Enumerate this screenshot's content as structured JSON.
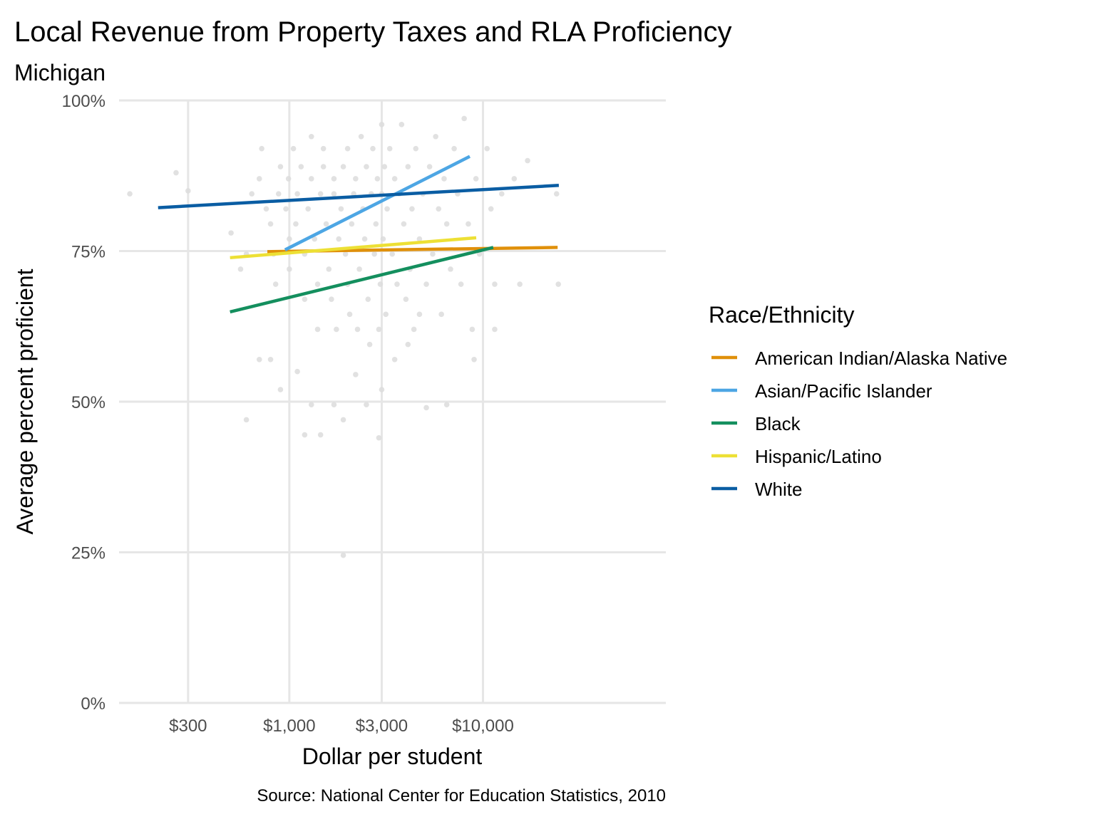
{
  "chart_data": {
    "type": "scatter",
    "title": "Local Revenue from Property Taxes and RLA Proficiency",
    "subtitle": "Michigan",
    "xlabel": "Dollar per student",
    "ylabel": "Average percent proficient",
    "caption": "Source: National Center for Education Statistics, 2010",
    "x_scale": "log10",
    "xlim": [
      132,
      88000
    ],
    "ylim": [
      0,
      100
    ],
    "x_ticks": [
      {
        "value": 300,
        "label": "$300"
      },
      {
        "value": 1000,
        "label": "$1,000"
      },
      {
        "value": 3000,
        "label": "$3,000"
      },
      {
        "value": 10000,
        "label": "$10,000"
      }
    ],
    "y_ticks": [
      {
        "value": 0,
        "label": "0%"
      },
      {
        "value": 25,
        "label": "25%"
      },
      {
        "value": 50,
        "label": "50%"
      },
      {
        "value": 75,
        "label": "75%"
      },
      {
        "value": 100,
        "label": "100%"
      }
    ],
    "grid": true,
    "legend": {
      "title": "Race/Ethnicity",
      "placement": "right"
    },
    "point_color": "#dcdcdc",
    "points": [
      [
        150,
        84.5
      ],
      [
        260,
        88
      ],
      [
        300,
        85
      ],
      [
        500,
        78
      ],
      [
        560,
        72
      ],
      [
        600,
        74.5
      ],
      [
        640,
        84.5
      ],
      [
        700,
        87
      ],
      [
        720,
        92
      ],
      [
        760,
        82
      ],
      [
        800,
        79.5
      ],
      [
        830,
        74.5
      ],
      [
        850,
        69.5
      ],
      [
        880,
        84.5
      ],
      [
        900,
        89
      ],
      [
        960,
        82
      ],
      [
        990,
        87
      ],
      [
        1000,
        77
      ],
      [
        1000,
        72
      ],
      [
        1050,
        92
      ],
      [
        1080,
        79.5
      ],
      [
        1100,
        84.5
      ],
      [
        1150,
        89
      ],
      [
        1200,
        74.5
      ],
      [
        1200,
        67
      ],
      [
        1250,
        82
      ],
      [
        1300,
        87
      ],
      [
        1300,
        94
      ],
      [
        1350,
        77
      ],
      [
        1400,
        69.5
      ],
      [
        1400,
        62
      ],
      [
        1450,
        84.5
      ],
      [
        1500,
        89
      ],
      [
        1500,
        92
      ],
      [
        1550,
        79.5
      ],
      [
        1600,
        72
      ],
      [
        1650,
        67
      ],
      [
        1700,
        84.5
      ],
      [
        1700,
        87
      ],
      [
        1750,
        62
      ],
      [
        1800,
        77
      ],
      [
        1850,
        82
      ],
      [
        1900,
        89
      ],
      [
        1950,
        74.5
      ],
      [
        2000,
        92
      ],
      [
        2000,
        69.5
      ],
      [
        2050,
        64.5
      ],
      [
        2100,
        79.5
      ],
      [
        2150,
        84.5
      ],
      [
        2200,
        87
      ],
      [
        2250,
        62
      ],
      [
        2300,
        72
      ],
      [
        2350,
        94
      ],
      [
        2400,
        82
      ],
      [
        2450,
        77
      ],
      [
        2500,
        89
      ],
      [
        2550,
        67
      ],
      [
        2600,
        59.5
      ],
      [
        2650,
        84.5
      ],
      [
        2700,
        92
      ],
      [
        2750,
        74.5
      ],
      [
        2800,
        79.5
      ],
      [
        2850,
        87
      ],
      [
        2900,
        62
      ],
      [
        2950,
        69.5
      ],
      [
        3000,
        84.5
      ],
      [
        3000,
        96
      ],
      [
        3050,
        77
      ],
      [
        3100,
        89
      ],
      [
        3150,
        64.5
      ],
      [
        3200,
        82
      ],
      [
        3300,
        92
      ],
      [
        3400,
        74.5
      ],
      [
        3500,
        87
      ],
      [
        3600,
        69.5
      ],
      [
        3700,
        84.5
      ],
      [
        3800,
        96
      ],
      [
        3900,
        79.5
      ],
      [
        4000,
        67
      ],
      [
        4100,
        89
      ],
      [
        4200,
        72
      ],
      [
        4300,
        82
      ],
      [
        4400,
        62
      ],
      [
        4500,
        92
      ],
      [
        4700,
        77
      ],
      [
        4900,
        84.5
      ],
      [
        5100,
        69.5
      ],
      [
        5300,
        89
      ],
      [
        5500,
        74.5
      ],
      [
        5700,
        94
      ],
      [
        5900,
        82
      ],
      [
        6100,
        64.5
      ],
      [
        6300,
        87
      ],
      [
        6500,
        79.5
      ],
      [
        6800,
        72
      ],
      [
        7100,
        92
      ],
      [
        7400,
        84.5
      ],
      [
        7700,
        69.5
      ],
      [
        8000,
        97
      ],
      [
        8400,
        79.5
      ],
      [
        8800,
        62
      ],
      [
        9200,
        87
      ],
      [
        9600,
        74.5
      ],
      [
        10500,
        92
      ],
      [
        11000,
        82
      ],
      [
        11500,
        69.5
      ],
      [
        12500,
        84.5
      ],
      [
        14500,
        87
      ],
      [
        15500,
        69.5
      ],
      [
        17000,
        90
      ],
      [
        24000,
        84.5
      ],
      [
        24500,
        69.5
      ],
      [
        700,
        57
      ],
      [
        900,
        52
      ],
      [
        1100,
        55
      ],
      [
        1300,
        49.5
      ],
      [
        1450,
        44.5
      ],
      [
        1700,
        49.5
      ],
      [
        1900,
        47
      ],
      [
        2200,
        54.5
      ],
      [
        2500,
        49.5
      ],
      [
        2900,
        44
      ],
      [
        3000,
        52
      ],
      [
        4100,
        59.5
      ],
      [
        5100,
        49
      ],
      [
        6500,
        49.5
      ],
      [
        600,
        47
      ],
      [
        800,
        57
      ],
      [
        1200,
        44.5
      ],
      [
        1900,
        24.5
      ],
      [
        3500,
        57
      ],
      [
        4700,
        64.5
      ],
      [
        9000,
        57
      ],
      [
        11500,
        62
      ]
    ],
    "series": [
      {
        "name": "American Indian/Alaska Native",
        "color": "#E0900A",
        "x": [
          770,
          24300
        ],
        "y": [
          74.9,
          75.6
        ]
      },
      {
        "name": "Asian/Pacific Islander",
        "color": "#4DA6E4",
        "x": [
          950,
          8550
        ],
        "y": [
          75.2,
          90.7
        ]
      },
      {
        "name": "Black",
        "color": "#148F5E",
        "x": [
          494,
          11300
        ],
        "y": [
          64.9,
          75.6
        ]
      },
      {
        "name": "Hispanic/Latino",
        "color": "#EDE035",
        "x": [
          494,
          9230
        ],
        "y": [
          73.9,
          77.2
        ]
      },
      {
        "name": "White",
        "color": "#0A5DA3",
        "x": [
          210,
          24650
        ],
        "y": [
          82.2,
          85.9
        ]
      }
    ]
  }
}
